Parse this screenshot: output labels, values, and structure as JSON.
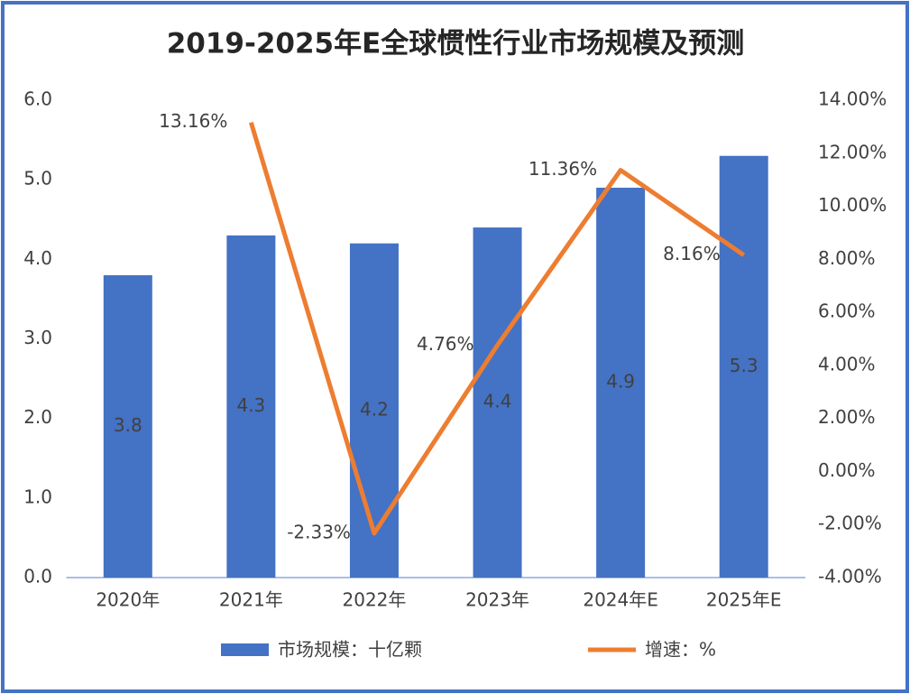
{
  "chart_data": {
    "type": "bar",
    "title": "2019-2025年E全球惯性行业市场规模及预测",
    "categories": [
      "2020年",
      "2021年",
      "2022年",
      "2023年",
      "2024年E",
      "2025年E"
    ],
    "series": [
      {
        "name": "市场规模：十亿颗",
        "type": "bar",
        "color": "#4472c4",
        "values": [
          3.8,
          4.3,
          4.2,
          4.4,
          4.9,
          5.3
        ]
      },
      {
        "name": "增速：%",
        "type": "line",
        "axis": "y2",
        "color": "#ed7d31",
        "values": [
          null,
          13.16,
          -2.33,
          4.76,
          11.36,
          8.16
        ],
        "value_labels": [
          null,
          "13.16%",
          "-2.33%",
          "4.76%",
          "11.36%",
          "8.16%"
        ]
      }
    ],
    "ylim": [
      0,
      6
    ],
    "yticks": [
      {
        "value": 0,
        "label": "0.0"
      },
      {
        "value": 1,
        "label": "1.0"
      },
      {
        "value": 2,
        "label": "2.0"
      },
      {
        "value": 3,
        "label": "3.0"
      },
      {
        "value": 4,
        "label": "4.0"
      },
      {
        "value": 5,
        "label": "5.0"
      },
      {
        "value": 6,
        "label": "6.0"
      }
    ],
    "y2lim": [
      -4,
      14
    ],
    "y2ticks": [
      {
        "value": -4,
        "label": "-4.00%"
      },
      {
        "value": -2,
        "label": "-2.00%"
      },
      {
        "value": 0,
        "label": "0.00%"
      },
      {
        "value": 2,
        "label": "2.00%"
      },
      {
        "value": 4,
        "label": "4.00%"
      },
      {
        "value": 6,
        "label": "6.00%"
      },
      {
        "value": 8,
        "label": "8.00%"
      },
      {
        "value": 10,
        "label": "10.00%"
      },
      {
        "value": 12,
        "label": "12.00%"
      },
      {
        "value": 14,
        "label": "14.00%"
      }
    ],
    "grid": false,
    "legend": "bottom"
  }
}
